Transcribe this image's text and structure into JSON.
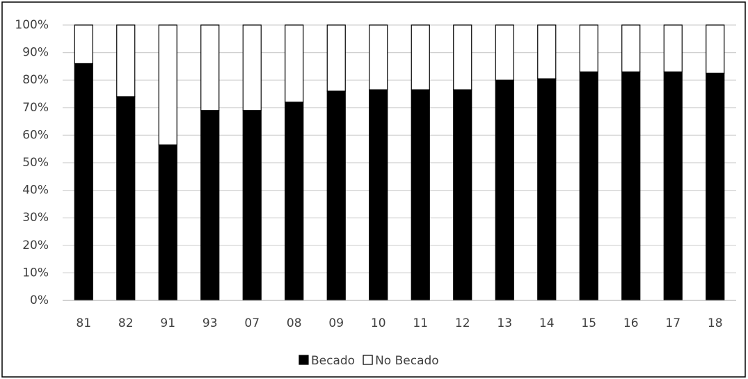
{
  "chart_data": {
    "type": "stacked_bar",
    "categories": [
      "81",
      "82",
      "91",
      "93",
      "07",
      "08",
      "09",
      "10",
      "11",
      "12",
      "13",
      "14",
      "15",
      "16",
      "17",
      "18"
    ],
    "series": [
      {
        "name": "Becado",
        "color": "#000000",
        "values": [
          86,
          74,
          56.5,
          69,
          69,
          72,
          76,
          76.5,
          76.5,
          76.5,
          80,
          80.5,
          83,
          83,
          83,
          82.5
        ]
      },
      {
        "name": "No Becado",
        "color": "#ffffff",
        "values": [
          14,
          26,
          43.5,
          31,
          31,
          28,
          24,
          23.5,
          23.5,
          23.5,
          20,
          19.5,
          17,
          17,
          17,
          17.5
        ]
      }
    ],
    "ylim": [
      0,
      100
    ],
    "yticks": [
      {
        "value": 0,
        "label": "0%"
      },
      {
        "value": 10,
        "label": "10%"
      },
      {
        "value": 20,
        "label": "20%"
      },
      {
        "value": 30,
        "label": "30%"
      },
      {
        "value": 40,
        "label": "40%"
      },
      {
        "value": 50,
        "label": "50%"
      },
      {
        "value": 60,
        "label": "60%"
      },
      {
        "value": 70,
        "label": "70%"
      },
      {
        "value": 80,
        "label": "80%"
      },
      {
        "value": 90,
        "label": "90%"
      },
      {
        "value": 100,
        "label": "100%"
      }
    ],
    "grid": true
  }
}
